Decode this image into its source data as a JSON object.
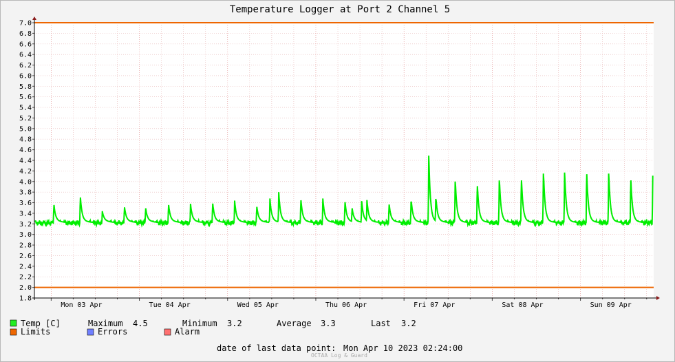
{
  "chart_data": {
    "type": "line",
    "title": "Temperature Logger at Port 2 Channel 5",
    "xlabel": "",
    "ylabel": "",
    "ylim": [
      1.8,
      7.0
    ],
    "y_ticks": [
      "1.8",
      "2.0",
      "2.2",
      "2.4",
      "2.6",
      "2.8",
      "3.0",
      "3.2",
      "3.4",
      "3.6",
      "3.8",
      "4.0",
      "4.2",
      "4.4",
      "4.6",
      "4.8",
      "5.0",
      "5.2",
      "5.4",
      "5.6",
      "5.8",
      "6.0",
      "6.2",
      "6.4",
      "6.6",
      "6.8",
      "7.0"
    ],
    "x_ticks": [
      "Mon 03 Apr",
      "Tue 04 Apr",
      "Wed 05 Apr",
      "Thu 06 Apr",
      "Fri 07 Apr",
      "Sat 08 Apr",
      "Sun 09 Apr"
    ],
    "grid": true,
    "series": [
      {
        "name": "Temp [C]",
        "color": "#00ee00",
        "baseline": 3.22,
        "spikes_day_offset": [
          [
            0.03,
            3.52
          ],
          [
            0.33,
            3.68
          ],
          [
            0.58,
            3.37
          ],
          [
            0.83,
            3.47
          ],
          [
            1.07,
            3.45
          ],
          [
            1.33,
            3.52
          ],
          [
            1.58,
            3.51
          ],
          [
            1.83,
            3.55
          ],
          [
            2.08,
            3.57
          ],
          [
            2.33,
            3.48
          ],
          [
            2.48,
            3.61
          ],
          [
            2.58,
            3.73
          ],
          [
            2.83,
            3.62
          ],
          [
            3.08,
            3.61
          ],
          [
            3.33,
            3.58
          ],
          [
            3.41,
            3.45
          ],
          [
            3.52,
            3.56
          ],
          [
            3.58,
            3.58
          ],
          [
            3.83,
            3.53
          ],
          [
            4.08,
            3.62
          ],
          [
            4.28,
            4.49
          ],
          [
            4.36,
            3.67
          ],
          [
            4.58,
            4.0
          ],
          [
            4.83,
            3.92
          ],
          [
            5.08,
            4.02
          ],
          [
            5.33,
            4.04
          ],
          [
            5.58,
            4.15
          ],
          [
            5.82,
            4.17
          ],
          [
            6.07,
            4.17
          ],
          [
            6.32,
            4.15
          ],
          [
            6.57,
            4.04
          ],
          [
            6.82,
            4.11
          ]
        ]
      },
      {
        "name": "Limits",
        "color": "#ee6600",
        "values": [
          2.0,
          7.0
        ]
      }
    ],
    "legend": {
      "placement": "bottom",
      "temp_label": "Temp [C]",
      "maximum_label": "Maximum",
      "maximum_value": "4.5",
      "minimum_label": "Minimum",
      "minimum_value": "3.2",
      "average_label": "Average",
      "average_value": "3.3",
      "last_label": "Last",
      "last_value": "3.2",
      "limits_label": "Limits",
      "errors_label": "Errors",
      "alarm_label": "Alarm",
      "colors": {
        "temp": "#22ee22",
        "limits": "#ee6600",
        "errors": "#6f7fff",
        "alarm": "#ff7070"
      }
    },
    "footer": {
      "last_point_label": "date of last data point:",
      "last_point_value": "Mon Apr 10 2023 02:24:00",
      "watermark": "OCTAA Log & Guard"
    }
  }
}
